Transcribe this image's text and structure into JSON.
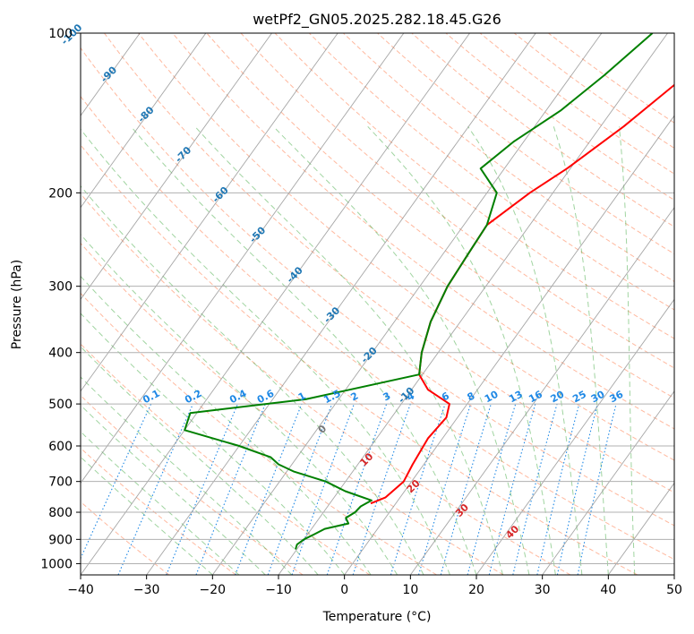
{
  "chart_data": {
    "type": "line",
    "title": "wetPf2_GN05.2025.282.18.45.G26",
    "xlabel": "Temperature (°C)",
    "ylabel": "Pressure (hPa)",
    "xlim": [
      -40,
      50
    ],
    "ylim": [
      1050,
      100
    ],
    "y_scale": "log",
    "grid": true,
    "x_ticks": [
      "−40",
      "−30",
      "−20",
      "−10",
      "0",
      "10",
      "20",
      "30",
      "40",
      "50"
    ],
    "y_ticks": [
      "100",
      "200",
      "300",
      "400",
      "500",
      "600",
      "700",
      "800",
      "900",
      "1000"
    ],
    "isotherm_labels": [
      "-100",
      "-90",
      "-80",
      "-70",
      "-60",
      "-50",
      "-40",
      "-30",
      "-20",
      "-10"
    ],
    "mixing_ratio_labels": [
      "0.1",
      "0.2",
      "0.4",
      "0.6",
      "1",
      "1.5",
      "2",
      "3",
      "4",
      "6",
      "8",
      "10",
      "13",
      "16",
      "20",
      "25",
      "30",
      "36"
    ],
    "wet_bulb_labels": [
      "0",
      "10",
      "20",
      "30",
      "40"
    ],
    "colors": {
      "temperature": "#ff0000",
      "dewpoint": "#008000",
      "isotherm": "#888888",
      "dry_adiabat": "#ff7f50",
      "moist_adiabat": "#2ca02c",
      "mixing_ratio": "#1e88e5",
      "isotherm_label": "#1f77b4",
      "wet_bulb_label": "#d62728"
    },
    "series": [
      {
        "name": "",
        "color": "#ff0000",
        "points": [
          [
            2.1,
            100
          ],
          [
            -2.6,
            120
          ],
          [
            -6.5,
            150
          ],
          [
            -10.5,
            180
          ],
          [
            -13.5,
            200
          ],
          [
            -16.5,
            230
          ],
          [
            -16.2,
            260
          ],
          [
            -15.8,
            300
          ],
          [
            -14.5,
            350
          ],
          [
            -12.5,
            400
          ],
          [
            -10.5,
            440
          ],
          [
            -7.5,
            470
          ],
          [
            -2.7,
            500
          ],
          [
            -1.7,
            530
          ],
          [
            -2.2,
            580
          ],
          [
            -1.7,
            650
          ],
          [
            -1.2,
            700
          ],
          [
            -2.2,
            750
          ],
          [
            -3.8,
            770
          ]
        ]
      },
      {
        "name": "",
        "color": "#008000",
        "points": [
          [
            -12.3,
            100
          ],
          [
            -15.0,
            120
          ],
          [
            -17.8,
            140
          ],
          [
            -21.5,
            160
          ],
          [
            -23.6,
            180
          ],
          [
            -18.5,
            200
          ],
          [
            -16.5,
            230
          ],
          [
            -16.2,
            260
          ],
          [
            -15.8,
            300
          ],
          [
            -14.5,
            350
          ],
          [
            -12.5,
            400
          ],
          [
            -10.5,
            440
          ],
          [
            -25.0,
            490
          ],
          [
            -41.0,
            520
          ],
          [
            -40.0,
            560
          ],
          [
            -30.0,
            600
          ],
          [
            -24.0,
            630
          ],
          [
            -22.0,
            650
          ],
          [
            -19.0,
            670
          ],
          [
            -13.0,
            700
          ],
          [
            -9.0,
            730
          ],
          [
            -4.0,
            760
          ],
          [
            -5.0,
            780
          ],
          [
            -5.2,
            800
          ],
          [
            -6.0,
            820
          ],
          [
            -5.0,
            840
          ],
          [
            -8.0,
            860
          ],
          [
            -9.0,
            880
          ],
          [
            -10.0,
            900
          ],
          [
            -10.5,
            920
          ],
          [
            -10.2,
            940
          ]
        ]
      }
    ]
  }
}
